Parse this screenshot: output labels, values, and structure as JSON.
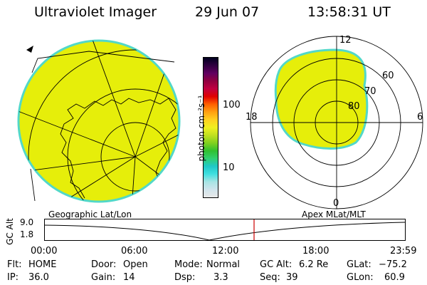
{
  "header": {
    "title": "Ultraviolet Imager",
    "date": "29 Jun 07",
    "time": "13:58:31 UT"
  },
  "colorbar": {
    "unit_label": "photon cm⁻²s⁻¹",
    "tick_labels": [
      "100",
      "10"
    ],
    "stops": [
      "#e8e8e8",
      "#d0e4ec",
      "#a8e4e4",
      "#40e0e0",
      "#20c8c8",
      "#30d070",
      "#30c030",
      "#80d020",
      "#c0e020",
      "#f0f020",
      "#ffd020",
      "#ffa010",
      "#ff6000",
      "#e00000",
      "#c00040",
      "#900040",
      "#600060",
      "#300040",
      "#000020"
    ]
  },
  "polar": {
    "lat_labels": [
      "60",
      "70",
      "80"
    ],
    "mlt_labels": {
      "top": "12",
      "left": "18",
      "right": "6",
      "bottom": "0"
    }
  },
  "timeline": {
    "left_label": "Geographic Lat/Lon",
    "right_label": "Apex MLat/MLT",
    "ylabel": "GC Alt",
    "y_ticks": [
      "9.0",
      "1.8"
    ],
    "x_ticks": [
      "00:00",
      "06:00",
      "12:00",
      "18:00",
      "23:59"
    ],
    "marker_time": "13:58:31"
  },
  "status": [
    [
      {
        "label": "Flt:",
        "value": "HOME"
      },
      {
        "label": "IP:",
        "value": "36.0"
      }
    ],
    [
      {
        "label": "Door:",
        "value": "Open"
      },
      {
        "label": "Gain:",
        "value": "14"
      }
    ],
    [
      {
        "label": "Mode:",
        "value": "Normal"
      },
      {
        "label": "Dsp:",
        "value": "3.3"
      }
    ],
    [
      {
        "label": "GC Alt:",
        "value": "6.2 Re"
      },
      {
        "label": "Seq:",
        "value": "39"
      }
    ],
    [
      {
        "label": "GLat:",
        "value": "−75.2"
      },
      {
        "label": "GLon:",
        "value": "60.9"
      }
    ]
  ],
  "colors": {
    "aurora": "#e6ee0a",
    "edge": "#52d8c8",
    "marker": "#cc0000"
  }
}
